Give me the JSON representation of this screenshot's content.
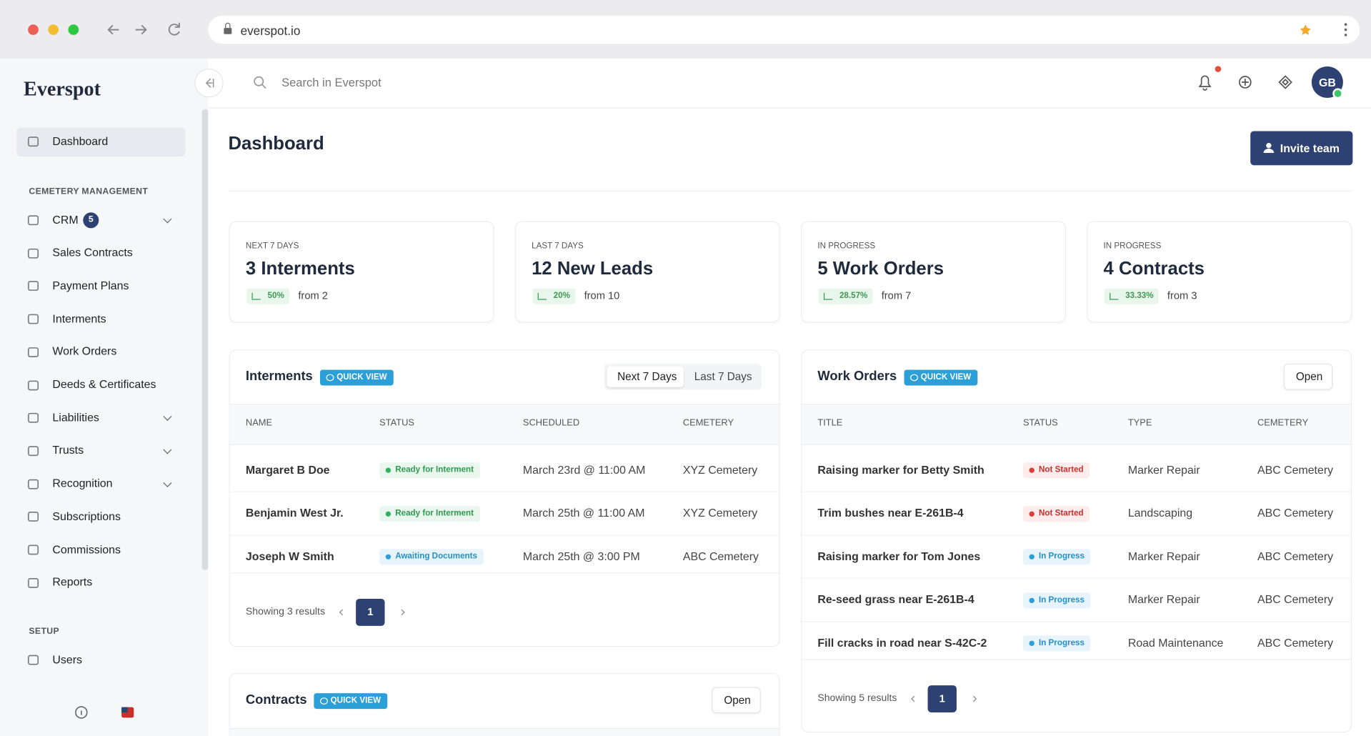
{
  "browser": {
    "url": "everspot.io"
  },
  "sidebar": {
    "logo": "Everspot",
    "active": "Dashboard",
    "sections": [
      {
        "heading": "CEMETERY MANAGEMENT",
        "items": [
          {
            "label": "CRM",
            "badge": 5,
            "expandable": true
          },
          {
            "label": "Sales Contracts"
          },
          {
            "label": "Payment Plans"
          },
          {
            "label": "Interments"
          },
          {
            "label": "Work Orders"
          },
          {
            "label": "Deeds & Certificates"
          },
          {
            "label": "Liabilities",
            "expandable": true
          },
          {
            "label": "Trusts",
            "expandable": true
          },
          {
            "label": "Recognition",
            "expandable": true
          },
          {
            "label": "Subscriptions"
          },
          {
            "label": "Commissions"
          },
          {
            "label": "Reports"
          }
        ]
      },
      {
        "heading": "SETUP",
        "items": [
          {
            "label": "Users"
          }
        ]
      }
    ]
  },
  "topbar": {
    "search_placeholder": "Search in Everspot",
    "avatar": "GB"
  },
  "header": {
    "title": "Dashboard",
    "button": "Invite team"
  },
  "stats": [
    {
      "label": "NEXT 7 DAYS",
      "value": "3 Interments",
      "change": "50%",
      "from": "from 2"
    },
    {
      "label": "LAST 7 DAYS",
      "value": "12 New Leads",
      "change": "20%",
      "from": "from 10"
    },
    {
      "label": "IN PROGRESS",
      "value": "5 Work Orders",
      "change": "28.57%",
      "from": "from 7"
    },
    {
      "label": "IN PROGRESS",
      "value": "4 Contracts",
      "change": "33.33%",
      "from": "from 3"
    }
  ],
  "interments": {
    "title": "Interments",
    "badge": "QUICK VIEW",
    "tabs": [
      "Next 7 Days",
      "Last 7 Days"
    ],
    "columns": [
      "NAME",
      "STATUS",
      "SCHEDULED",
      "CEMETERY"
    ],
    "rows": [
      {
        "name": "Margaret B Doe",
        "status": {
          "text": "Ready for Interment",
          "tone": "green"
        },
        "scheduled": "March 23rd @ 11:00 AM",
        "cemetery": "XYZ Cemetery"
      },
      {
        "name": "Benjamin West Jr.",
        "status": {
          "text": "Ready for Interment",
          "tone": "green"
        },
        "scheduled": "March 25th @ 11:00 AM",
        "cemetery": "XYZ Cemetery"
      },
      {
        "name": "Joseph W Smith",
        "status": {
          "text": "Awaiting Documents",
          "tone": "blue"
        },
        "scheduled": "March 25th @ 3:00 PM",
        "cemetery": "ABC Cemetery"
      }
    ],
    "footer": "Showing 3 results",
    "page": 1
  },
  "work_orders": {
    "title": "Work Orders",
    "badge": "QUICK VIEW",
    "button": "Open",
    "columns": [
      "TITLE",
      "STATUS",
      "TYPE",
      "CEMETERY"
    ],
    "rows": [
      {
        "title": "Raising marker for Betty Smith",
        "status": {
          "text": "Not Started",
          "tone": "red"
        },
        "type": "Marker Repair",
        "cemetery": "ABC Cemetery"
      },
      {
        "title": "Trim bushes near E-261B-4",
        "status": {
          "text": "Not Started",
          "tone": "red"
        },
        "type": "Landscaping",
        "cemetery": "ABC Cemetery"
      },
      {
        "title": "Raising marker for Tom Jones",
        "status": {
          "text": "In Progress",
          "tone": "blue"
        },
        "type": "Marker Repair",
        "cemetery": "ABC Cemetery"
      },
      {
        "title": "Re-seed grass near E-261B-4",
        "status": {
          "text": "In Progress",
          "tone": "blue"
        },
        "type": "Marker Repair",
        "cemetery": "ABC Cemetery"
      },
      {
        "title": "Fill cracks in road near S-42C-2",
        "status": {
          "text": "In Progress",
          "tone": "blue"
        },
        "type": "Road Maintenance",
        "cemetery": "ABC Cemetery"
      }
    ],
    "footer": "Showing 5 results",
    "page": 1
  },
  "contracts": {
    "title": "Contracts",
    "badge": "QUICK VIEW",
    "button": "Open"
  }
}
